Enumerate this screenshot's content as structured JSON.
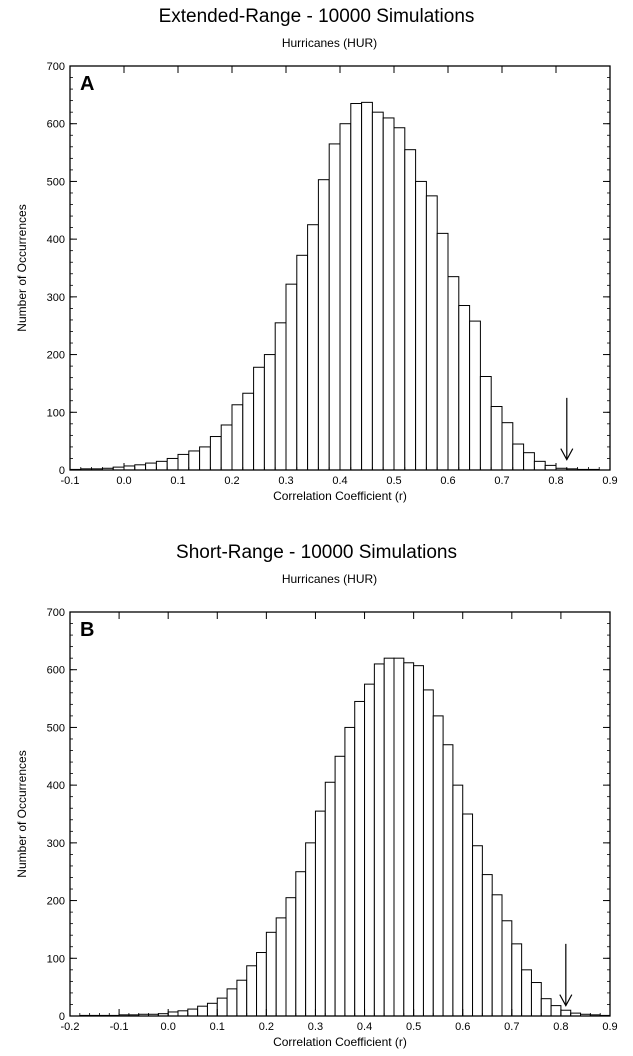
{
  "chart_data": [
    {
      "type": "bar",
      "panel_label": "A",
      "title": "Extended-Range - 10000 Simulations",
      "subtitle": "Hurricanes (HUR)",
      "xlabel": "Correlation Coefficient  (r)",
      "ylabel": "Number of Occurrences",
      "xlim": [
        -0.1,
        0.9
      ],
      "ylim": [
        0,
        700
      ],
      "xticks": [
        "-0.1",
        "0.0",
        "0.1",
        "0.2",
        "0.3",
        "0.4",
        "0.5",
        "0.6",
        "0.7",
        "0.8",
        "0.9"
      ],
      "yticks": [
        "0",
        "100",
        "200",
        "300",
        "400",
        "500",
        "600",
        "700"
      ],
      "bin_width": 0.02,
      "bin_start": -0.1,
      "values": [
        1,
        2,
        2,
        3,
        5,
        7,
        9,
        12,
        15,
        20,
        27,
        33,
        40,
        58,
        78,
        113,
        133,
        178,
        200,
        255,
        322,
        372,
        425,
        503,
        565,
        600,
        635,
        637,
        620,
        610,
        593,
        555,
        500,
        475,
        410,
        335,
        285,
        258,
        162,
        110,
        82,
        45,
        30,
        15,
        8,
        3,
        2,
        1,
        1,
        0
      ],
      "arrow_at": 0.82
    },
    {
      "type": "bar",
      "panel_label": "B",
      "title": "Short-Range - 10000 Simulations",
      "subtitle": "Hurricanes (HUR)",
      "xlabel": "Correlation Coefficient  (r)",
      "ylabel": "Number of Occurrences",
      "xlim": [
        -0.2,
        0.9
      ],
      "ylim": [
        0,
        700
      ],
      "xticks": [
        "-0.2",
        "-0.1",
        "0.0",
        "0.1",
        "0.2",
        "0.3",
        "0.4",
        "0.5",
        "0.6",
        "0.7",
        "0.8",
        "0.9"
      ],
      "yticks": [
        "0",
        "100",
        "200",
        "300",
        "400",
        "500",
        "600",
        "700"
      ],
      "bin_width": 0.02,
      "bin_start": -0.2,
      "values": [
        0,
        1,
        1,
        1,
        1,
        2,
        2,
        3,
        3,
        4,
        7,
        9,
        12,
        17,
        22,
        31,
        47,
        62,
        87,
        110,
        145,
        170,
        205,
        250,
        300,
        355,
        405,
        450,
        500,
        545,
        575,
        610,
        620,
        620,
        612,
        607,
        565,
        520,
        470,
        400,
        350,
        295,
        245,
        210,
        165,
        125,
        80,
        58,
        30,
        18,
        10,
        5,
        3,
        2,
        1,
        0
      ],
      "arrow_at": 0.81
    }
  ]
}
